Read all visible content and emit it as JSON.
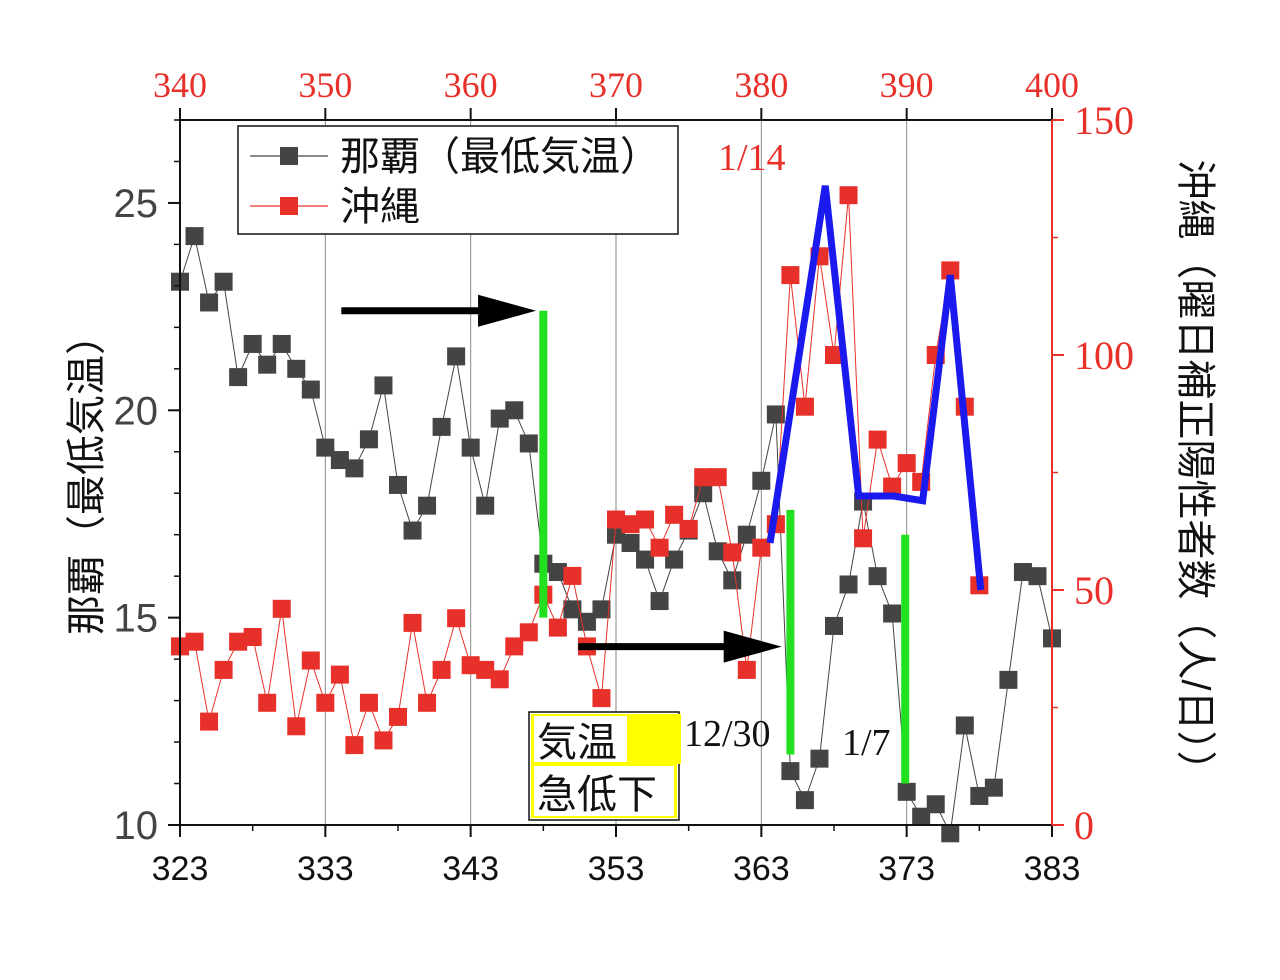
{
  "chart_data": {
    "type": "line",
    "axes": {
      "bottom": {
        "range": [
          323,
          383
        ],
        "ticks": [
          323,
          333,
          343,
          353,
          363,
          373,
          383
        ],
        "tick_labels": [
          "323",
          "333",
          "343",
          "353",
          "363",
          "373",
          "383"
        ]
      },
      "top": {
        "range": [
          340,
          400
        ],
        "ticks": [
          340,
          350,
          360,
          370,
          380,
          390,
          400
        ],
        "tick_labels": [
          "340",
          "350",
          "360",
          "370",
          "380",
          "390",
          "400"
        ],
        "color": "#e8302a"
      },
      "left": {
        "label": "那覇（最低気温）",
        "range": [
          10,
          27
        ],
        "ticks": [
          10,
          15,
          20,
          25
        ],
        "tick_labels": [
          "10",
          "15",
          "20",
          "25"
        ]
      },
      "right": {
        "label": "沖縄（曜日補正陽性者数（人/日））",
        "range": [
          0,
          150
        ],
        "ticks": [
          0,
          50,
          100,
          150
        ],
        "tick_labels": [
          "0",
          "50",
          "100",
          "150"
        ],
        "color": "#e8302a"
      }
    },
    "grid": {
      "vertical_at": [
        333,
        343,
        353,
        363,
        373
      ]
    },
    "legend": {
      "placement": "top-left",
      "entries": [
        {
          "label": "那覇（最低気温）",
          "color": "#444444"
        },
        {
          "label": "沖縄",
          "color": "#e8302a"
        }
      ]
    },
    "series": [
      {
        "name": "那覇（最低気温）",
        "axis": "bottom-left",
        "color": "#444444",
        "marker": "square",
        "x": [
          323,
          324,
          325,
          326,
          327,
          328,
          329,
          330,
          331,
          332,
          333,
          334,
          335,
          336,
          337,
          338,
          339,
          340,
          341,
          342,
          343,
          344,
          345,
          346,
          347,
          348,
          349,
          350,
          351,
          352,
          353,
          354,
          355,
          356,
          357,
          358,
          359,
          360,
          361,
          362,
          363,
          364,
          365,
          366,
          367,
          368,
          369,
          370,
          371,
          372,
          373,
          374,
          375,
          376,
          377,
          378,
          379,
          380,
          381,
          382,
          383
        ],
        "y": [
          23.1,
          24.2,
          22.6,
          23.1,
          20.8,
          21.6,
          21.1,
          21.6,
          21.0,
          20.5,
          19.1,
          18.8,
          18.6,
          19.3,
          20.6,
          18.2,
          17.1,
          17.7,
          19.6,
          21.3,
          19.1,
          17.7,
          19.8,
          20.0,
          19.2,
          16.3,
          16.1,
          15.2,
          14.9,
          15.2,
          17.0,
          16.8,
          16.4,
          15.4,
          16.4,
          17.1,
          18.0,
          16.6,
          15.9,
          17.0,
          18.3,
          19.9,
          11.3,
          10.6,
          11.6,
          14.8,
          15.8,
          17.8,
          16.0,
          15.1,
          10.8,
          10.2,
          10.5,
          9.8,
          12.4,
          10.7,
          10.9,
          13.5,
          16.1,
          16.0,
          14.5
        ]
      },
      {
        "name": "沖縄",
        "axis": "top-right",
        "color": "#e8302a",
        "marker": "square",
        "x": [
          340,
          341,
          342,
          343,
          344,
          345,
          346,
          347,
          348,
          349,
          350,
          351,
          352,
          353,
          354,
          355,
          356,
          357,
          358,
          359,
          360,
          361,
          362,
          363,
          364,
          365,
          366,
          367,
          368,
          369,
          370,
          371,
          372,
          373,
          374,
          375,
          376,
          377,
          378,
          379,
          380,
          381,
          382,
          383,
          384,
          385,
          386,
          387,
          388,
          389,
          390,
          391,
          392,
          393,
          394,
          395
        ],
        "y": [
          38,
          39,
          22,
          33,
          39,
          40,
          26,
          46,
          21,
          35,
          26,
          32,
          17,
          26,
          18,
          23,
          43,
          26,
          33,
          44,
          34,
          33,
          31,
          38,
          41,
          49,
          42,
          53,
          38,
          27,
          65,
          64,
          65,
          59,
          66,
          63,
          74,
          74,
          58,
          33,
          59,
          64,
          117,
          89,
          121,
          100,
          134,
          61,
          82,
          72,
          77,
          73,
          100,
          118,
          89,
          51
        ]
      },
      {
        "name": "overlay",
        "axis": "top-right",
        "color": "#1a1aee",
        "marker": "none",
        "x": [
          380.6,
          384.4,
          386.7,
          389.1,
          391.1,
          393.0,
          395.1
        ],
        "y": [
          60,
          136,
          70,
          70,
          69,
          117,
          50
        ]
      }
    ],
    "annotations": {
      "text_1_14": "1/14",
      "text_12_30": "12/30",
      "text_1_7": "1/7",
      "box_line1": "気温",
      "box_line2": "急低下",
      "green_lines": [
        {
          "x": 348,
          "y0": 15.0,
          "y1": 22.4
        },
        {
          "x": 365,
          "y0": 11.7,
          "y1": 17.6
        },
        {
          "x": 372.9,
          "y0": 11.0,
          "y1": 17.0
        }
      ],
      "arrows": [
        {
          "x0": 334.1,
          "x1": 347.5,
          "y": 22.4
        },
        {
          "x0": 350.4,
          "x1": 364.4,
          "y": 14.3
        }
      ]
    }
  }
}
